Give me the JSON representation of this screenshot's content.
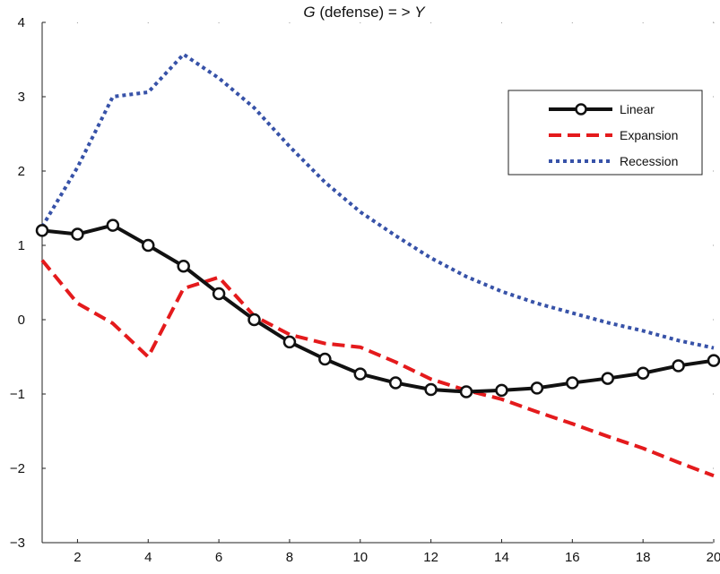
{
  "chart_data": {
    "type": "line",
    "title": "G (defense) = > Y",
    "title_parts": {
      "g": "G",
      "mid": " (defense) = > ",
      "y": "Y"
    },
    "xlabel": "",
    "ylabel": "",
    "xlim": [
      1,
      20
    ],
    "ylim": [
      -3,
      4
    ],
    "xticks": [
      2,
      4,
      6,
      8,
      10,
      12,
      14,
      16,
      18,
      20
    ],
    "xtick_labels": [
      "2",
      "4",
      "6",
      "8",
      "10",
      "12",
      "14",
      "16",
      "18",
      "20"
    ],
    "yticks": [
      -3,
      -2,
      -1,
      0,
      1,
      2,
      3,
      4
    ],
    "ytick_labels": [
      "−3",
      "−2",
      "−1",
      "0",
      "1",
      "2",
      "3",
      "4"
    ],
    "grid": false,
    "legend_position": "top-right",
    "x": [
      1,
      2,
      3,
      4,
      5,
      6,
      7,
      8,
      9,
      10,
      11,
      12,
      13,
      14,
      15,
      16,
      17,
      18,
      19,
      20
    ],
    "series": [
      {
        "name": "Linear",
        "color": "#111111",
        "style": "solid-circle-markers",
        "values": [
          1.2,
          1.15,
          1.27,
          1.0,
          0.72,
          0.35,
          0.0,
          -0.3,
          -0.53,
          -0.73,
          -0.85,
          -0.94,
          -0.97,
          -0.95,
          -0.92,
          -0.85,
          -0.79,
          -0.72,
          -0.62,
          -0.55
        ]
      },
      {
        "name": "Expansion",
        "color": "#e41a1c",
        "style": "dashed",
        "values": [
          0.8,
          0.22,
          -0.05,
          -0.5,
          0.42,
          0.57,
          0.05,
          -0.2,
          -0.32,
          -0.37,
          -0.57,
          -0.8,
          -0.95,
          -1.07,
          -1.24,
          -1.4,
          -1.57,
          -1.73,
          -1.92,
          -2.1
        ]
      },
      {
        "name": "Recession",
        "color": "#3752a8",
        "style": "dotted",
        "values": [
          1.25,
          2.05,
          3.0,
          3.06,
          3.57,
          3.25,
          2.85,
          2.33,
          1.85,
          1.45,
          1.13,
          0.83,
          0.58,
          0.38,
          0.22,
          0.09,
          -0.04,
          -0.15,
          -0.28,
          -0.38
        ]
      }
    ]
  }
}
